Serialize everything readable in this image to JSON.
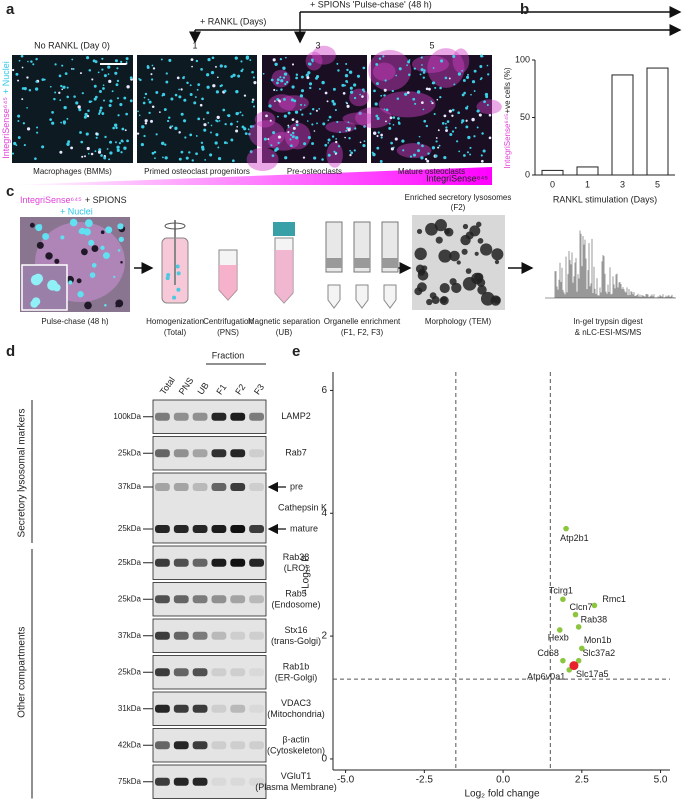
{
  "figure": {
    "a": {
      "label": "a",
      "rankl": "+ RANKL (Days)",
      "spions": "+ SPIONs 'Pulse-chase' (48 h)",
      "days": [
        "No RANKL (Day 0)",
        "1",
        "3",
        "5"
      ],
      "stages": [
        "Macrophages (BMMs)",
        "Primed osteoclast progenitors",
        "Pre-osteoclasts",
        "Mature osteoclasts"
      ],
      "stain": "IntegriSense⁶⁴⁵",
      "nuclei": "+ Nuclei",
      "gradient": "IntegriSense⁶⁴⁵"
    },
    "b": {
      "label": "b"
    },
    "c": {
      "label": "c",
      "stain": "IntegriSense⁶⁴⁵",
      "spions": "+ SPIONS",
      "nuclei": "+ Nuclei",
      "pulse": "Pulse-chase (48 h)",
      "steps": [
        [
          "Homogenization",
          "(Total)"
        ],
        [
          "Centrifugation",
          "(PNS)"
        ],
        [
          "Magnetic separation",
          "(UB)"
        ],
        [
          "Organelle enrichment",
          "(F1, F2, F3)"
        ]
      ],
      "enriched": "Enriched secretory lysosomes",
      "f2": "(F2)",
      "tem": "Morphology (TEM)",
      "ms": [
        "In-gel trypsin digest",
        "& nLC-ESI-MS/MS"
      ]
    },
    "d": {
      "label": "d",
      "lanes": [
        "Total",
        "PNS",
        "UB",
        "F1",
        "F2",
        "F3"
      ],
      "fraction": "Fraction",
      "groups": [
        "Secretory lysosomal  markers",
        "Other compartments"
      ],
      "rows": [
        {
          "kda": "100kDa",
          "name": "LAMP2"
        },
        {
          "kda": "25kDa",
          "name": "Rab7"
        },
        {
          "kda": "37kDa",
          "kda2": "25kDa",
          "name": "Cathepsin K",
          "pre": "pre",
          "mature": "mature"
        },
        {
          "kda": "25kDa",
          "name": "Rab38",
          "sub": "(LRO)"
        },
        {
          "kda": "25kDa",
          "name": "Rab5",
          "sub": "(Endosome)"
        },
        {
          "kda": "37kDa",
          "name": "Stx16",
          "sub": "(trans-Golgi)"
        },
        {
          "kda": "25kDa",
          "name": "Rab1b",
          "sub": "(ER-Golgi)"
        },
        {
          "kda": "31kDa",
          "name": "VDAC3",
          "sub": "(Mitochondria)"
        },
        {
          "kda": "42kDa",
          "name": "β-actin",
          "sub": "(Cytoskeleton)"
        },
        {
          "kda": "75kDa",
          "name": "VGluT1",
          "sub": "(Plasma Membrane)"
        }
      ]
    },
    "e": {
      "label": "e"
    }
  },
  "chart_data": [
    {
      "type": "bar",
      "categories": [
        "0",
        "1",
        "3",
        "5"
      ],
      "values": [
        4,
        7,
        87,
        93
      ],
      "ylabel_stain": "IntegriSense⁶⁴⁵",
      "ylabel": "+ve cells (%)",
      "xlabel": "RANKL stimulation (Days)",
      "ylim": [
        0,
        100
      ],
      "yticks": [
        0,
        50,
        100
      ],
      "color": "#ffffff",
      "edge": "#222222"
    },
    {
      "type": "scatter",
      "xlabel": "Log₂ fold change",
      "ylabel": "−Log₁₀ P",
      "labels": [
        "Atp2b1",
        "Tcirg1",
        "Rmc1",
        "Clcn7",
        "Hexb",
        "Rab38",
        "Mon1b",
        "Cd68",
        "Slc37a2",
        "Atp6v0a1",
        "Slc17a5"
      ],
      "x": [
        2.0,
        1.9,
        2.9,
        2.3,
        1.8,
        2.4,
        2.5,
        1.9,
        2.4,
        2.1,
        2.25
      ],
      "values": [
        3.75,
        2.6,
        2.5,
        2.35,
        2.1,
        2.15,
        1.8,
        1.6,
        1.6,
        1.45,
        1.52
      ],
      "colors": [
        "#8cc63f",
        "#8cc63f",
        "#8cc63f",
        "#8cc63f",
        "#8cc63f",
        "#8cc63f",
        "#8cc63f",
        "#8cc63f",
        "#8cc63f",
        "#8cc63f",
        "#e8202a"
      ],
      "xlim": [
        -5.4,
        5.3
      ],
      "ylim": [
        -0.18,
        6.3
      ],
      "xticks": [
        {
          "value": -5,
          "label": "-5.0"
        },
        {
          "value": -2.5,
          "label": "-2.5"
        },
        {
          "value": 0,
          "label": "0.0"
        },
        {
          "value": 2.5,
          "label": "2.5"
        },
        {
          "value": 5,
          "label": "5.0"
        }
      ],
      "yticks": [
        0,
        2,
        4,
        6
      ],
      "thresholds": {
        "x": [
          -1.5,
          1.5
        ],
        "y": 1.3
      }
    }
  ]
}
